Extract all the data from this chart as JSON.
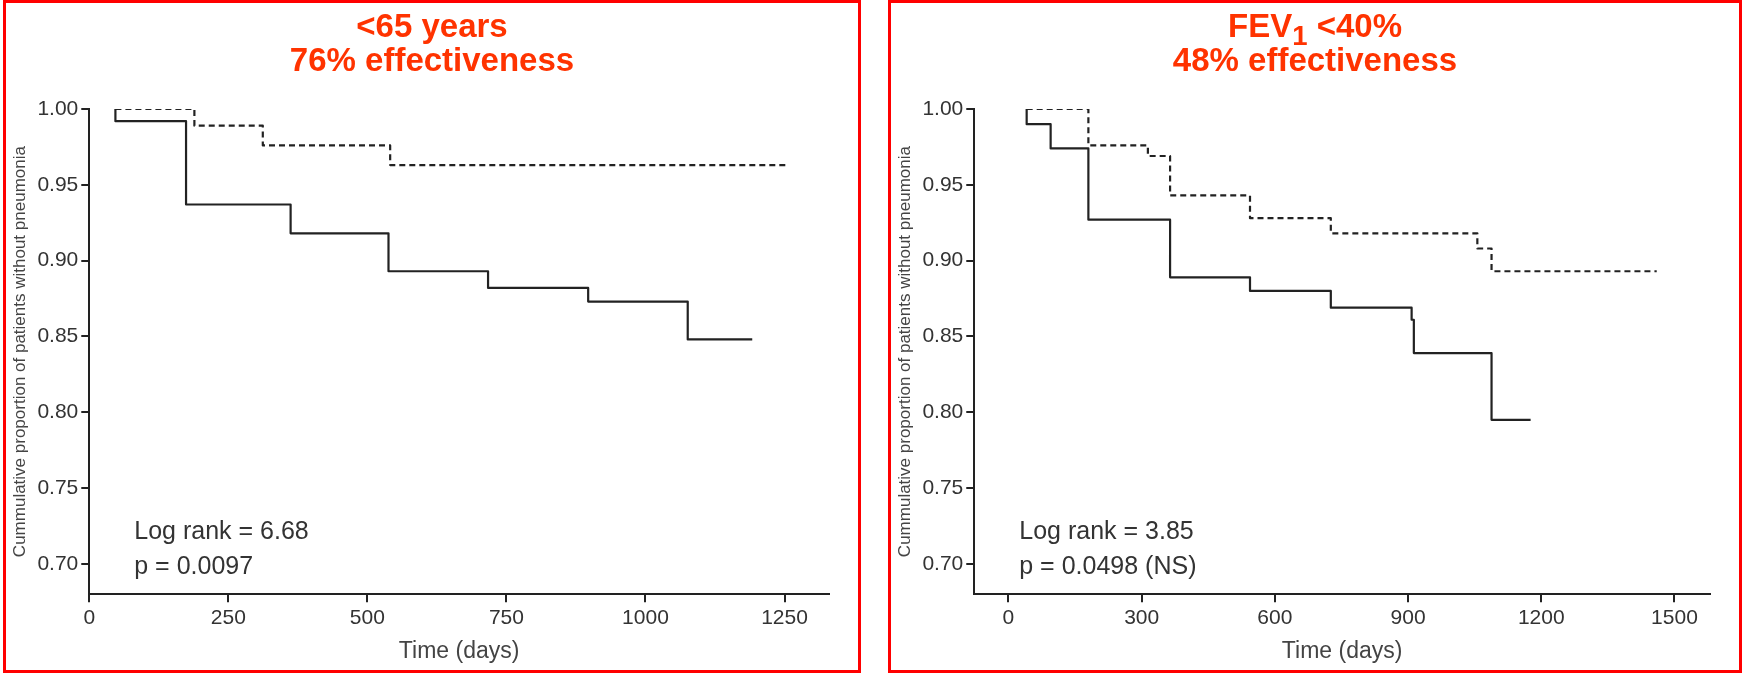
{
  "chart_data": [
    {
      "type": "step",
      "title": "<65 years",
      "subtitle": "76% effectiveness",
      "xlabel": "Time (days)",
      "ylabel": "Cummulative proportion of patients without pneumonia",
      "xlim": [
        0,
        1330
      ],
      "xticks": [
        0,
        250,
        500,
        750,
        1000,
        1250
      ],
      "ylim": [
        0.68,
        1.0
      ],
      "yticks": [
        {
          "value": 0.7,
          "label": "0.70"
        },
        {
          "value": 0.75,
          "label": "0.75"
        },
        {
          "value": 0.8,
          "label": "0.80"
        },
        {
          "value": 0.85,
          "label": "0.85"
        },
        {
          "value": 0.9,
          "label": "0.90"
        },
        {
          "value": 0.95,
          "label": "0.95"
        },
        {
          "value": 1.0,
          "label": "1.00"
        }
      ],
      "grid": false,
      "legend": false,
      "marker": "none",
      "series": [
        {
          "color": "#222222",
          "line_style": "dashed",
          "x": [
            47,
            189,
            312,
            541,
            1252
          ],
          "values": [
            1.0,
            0.989,
            0.976,
            0.963,
            0.963
          ]
        },
        {
          "color": "#222222",
          "line_style": "solid",
          "x": [
            47,
            47,
            174,
            362,
            538,
            717,
            897,
            1076,
            1192
          ],
          "values": [
            1.0,
            0.992,
            0.937,
            0.918,
            0.893,
            0.882,
            0.873,
            0.848,
            0.848
          ]
        }
      ],
      "annotations": [
        "Log rank = 6.68",
        "p = 0.0097"
      ]
    },
    {
      "type": "step",
      "title": "FEV$_{1}$ <40%",
      "subtitle": "48% effectiveness",
      "xlabel": "Time (days)",
      "ylabel": "Cummulative proportion of patients without pneumonia",
      "xlim": [
        -77,
        1580
      ],
      "xticks": [
        0,
        300,
        600,
        900,
        1200,
        1500
      ],
      "ylim": [
        0.68,
        1.0
      ],
      "yticks": [
        {
          "value": 0.7,
          "label": "0.70"
        },
        {
          "value": 0.75,
          "label": "0.75"
        },
        {
          "value": 0.8,
          "label": "0.80"
        },
        {
          "value": 0.85,
          "label": "0.85"
        },
        {
          "value": 0.9,
          "label": "0.90"
        },
        {
          "value": 0.95,
          "label": "0.95"
        },
        {
          "value": 1.0,
          "label": "1.00"
        }
      ],
      "grid": false,
      "legend": false,
      "marker": "none",
      "series": [
        {
          "color": "#222222",
          "line_style": "dashed",
          "x": [
            41,
            180,
            314,
            364,
            544,
            726,
            1056,
            1088,
            1460
          ],
          "values": [
            1.0,
            0.976,
            0.969,
            0.943,
            0.928,
            0.918,
            0.908,
            0.893,
            0.893
          ]
        },
        {
          "color": "#222222",
          "line_style": "solid",
          "x": [
            41,
            41,
            95,
            180,
            364,
            544,
            726,
            908,
            913,
            1088,
            1176
          ],
          "values": [
            1.0,
            0.99,
            0.974,
            0.927,
            0.889,
            0.88,
            0.869,
            0.861,
            0.839,
            0.795,
            0.795
          ]
        }
      ],
      "annotations": [
        "Log rank = 3.85",
        "p = 0.0498 (NS)"
      ]
    }
  ]
}
